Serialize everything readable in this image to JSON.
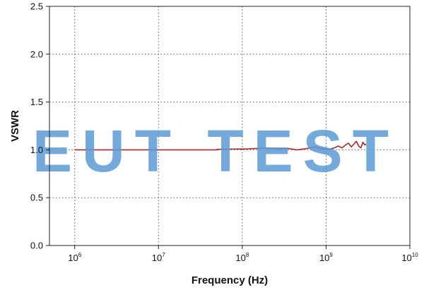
{
  "chart_data": {
    "type": "line",
    "xlabel": "Frequency (Hz)",
    "ylabel": "VSWR",
    "x_scale": "log",
    "xlim": [
      500000,
      10000000000
    ],
    "ylim": [
      0.0,
      2.5
    ],
    "x_ticks": [
      {
        "base": "10",
        "exp": "6",
        "value": 1000000
      },
      {
        "base": "10",
        "exp": "7",
        "value": 10000000
      },
      {
        "base": "10",
        "exp": "8",
        "value": 100000000
      },
      {
        "base": "10",
        "exp": "9",
        "value": 1000000000
      },
      {
        "base": "10",
        "exp": "10",
        "value": 10000000000
      }
    ],
    "y_ticks": [
      "0.0",
      "0.5",
      "1.0",
      "1.5",
      "2.0",
      "2.5"
    ],
    "grid": true,
    "grid_style": "dotted",
    "series": [
      {
        "color": "#a52a2a",
        "points": [
          [
            1000000,
            1.0
          ],
          [
            50000000,
            1.0
          ],
          [
            50000000,
            1.005
          ],
          [
            120000000,
            1.01
          ],
          [
            200000000,
            1.02
          ],
          [
            280000000,
            1.01
          ],
          [
            350000000,
            1.015
          ],
          [
            450000000,
            1.0
          ],
          [
            550000000,
            1.01
          ],
          [
            650000000,
            1.02
          ],
          [
            750000000,
            1.03
          ],
          [
            850000000,
            1.015
          ],
          [
            950000000,
            1.01
          ],
          [
            1100000000,
            1.005
          ],
          [
            1250000000,
            1.02
          ],
          [
            1400000000,
            1.04
          ],
          [
            1550000000,
            1.02
          ],
          [
            1700000000,
            1.05
          ],
          [
            1850000000,
            1.07
          ],
          [
            2000000000,
            1.03
          ],
          [
            2150000000,
            1.06
          ],
          [
            2300000000,
            1.09
          ],
          [
            2450000000,
            1.04
          ],
          [
            2600000000,
            1.02
          ],
          [
            2750000000,
            1.08
          ],
          [
            2900000000,
            1.05
          ],
          [
            3000000000,
            1.06
          ]
        ]
      }
    ]
  },
  "watermark": {
    "text": "EUT TEST",
    "color": "#5b9bd5"
  }
}
